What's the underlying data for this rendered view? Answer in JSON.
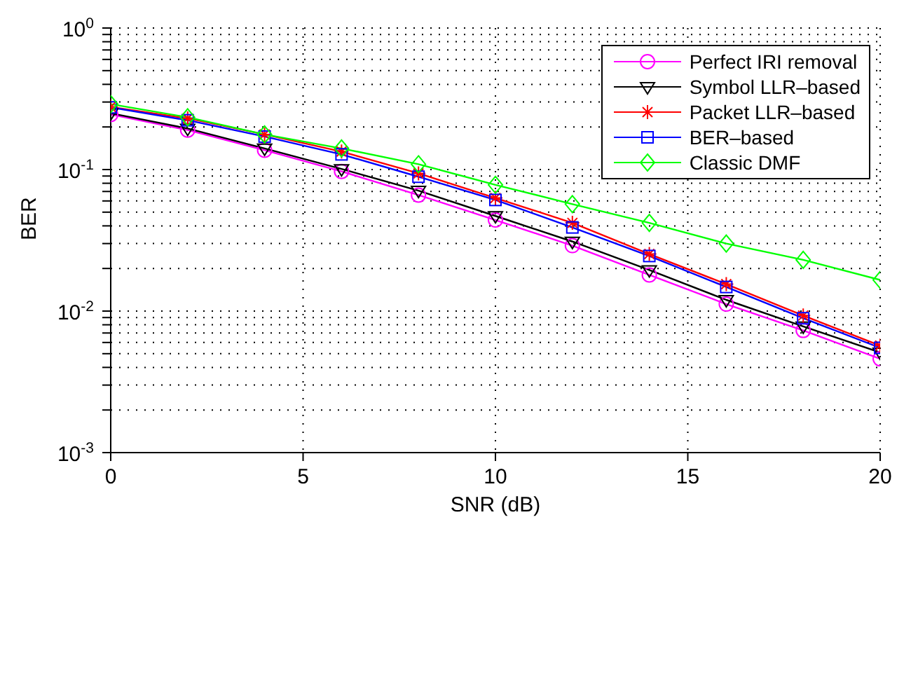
{
  "chart_data": {
    "type": "line",
    "xlabel": "SNR (dB)",
    "ylabel": "BER",
    "x": [
      0,
      2,
      4,
      6,
      8,
      10,
      12,
      14,
      16,
      18,
      20
    ],
    "series": [
      {
        "name": "Perfect IRI removal",
        "color": "#ff00ff",
        "marker": "circle",
        "values": [
          0.245,
          0.19,
          0.137,
          0.097,
          0.066,
          0.044,
          0.029,
          0.018,
          0.0112,
          0.0073,
          0.0046
        ]
      },
      {
        "name": "Symbol LLR–based",
        "color": "#000000",
        "marker": "triangle",
        "values": [
          0.25,
          0.195,
          0.141,
          0.101,
          0.071,
          0.047,
          0.031,
          0.0195,
          0.012,
          0.0078,
          0.0051
        ]
      },
      {
        "name": "Packet LLR–based",
        "color": "#ff0000",
        "marker": "cross",
        "values": [
          0.277,
          0.23,
          0.177,
          0.134,
          0.094,
          0.063,
          0.042,
          0.0253,
          0.0155,
          0.0093,
          0.0057
        ]
      },
      {
        "name": "BER–based",
        "color": "#0000ff",
        "marker": "square",
        "values": [
          0.275,
          0.223,
          0.171,
          0.128,
          0.089,
          0.061,
          0.039,
          0.0245,
          0.0148,
          0.0089,
          0.0055
        ]
      },
      {
        "name": "Classic DMF",
        "color": "#00ff00",
        "marker": "diamond",
        "values": [
          0.29,
          0.234,
          0.177,
          0.141,
          0.109,
          0.078,
          0.057,
          0.042,
          0.03,
          0.023,
          0.0166
        ]
      }
    ],
    "log": "y",
    "xlim": [
      0,
      20
    ],
    "xticks": [
      0,
      5,
      10,
      15,
      20
    ],
    "ylim": [
      0.001,
      1
    ],
    "yticks": [
      {
        "value": 0.001,
        "label": "10$^{-3}$"
      },
      {
        "value": 0.002,
        "label": null
      },
      {
        "value": 0.003,
        "label": null
      },
      {
        "value": 0.004,
        "label": null
      },
      {
        "value": 0.005,
        "label": null
      },
      {
        "value": 0.006,
        "label": null
      },
      {
        "value": 0.007,
        "label": null
      },
      {
        "value": 0.008,
        "label": null
      },
      {
        "value": 0.009,
        "label": null
      },
      {
        "value": 0.01,
        "label": "10$^{-2}$"
      },
      {
        "value": 0.02,
        "label": null
      },
      {
        "value": 0.03,
        "label": null
      },
      {
        "value": 0.04,
        "label": null
      },
      {
        "value": 0.05,
        "label": null
      },
      {
        "value": 0.06,
        "label": null
      },
      {
        "value": 0.07,
        "label": null
      },
      {
        "value": 0.08,
        "label": null
      },
      {
        "value": 0.09,
        "label": null
      },
      {
        "value": 0.1,
        "label": "10$^{-1}$"
      },
      {
        "value": 0.2,
        "label": null
      },
      {
        "value": 0.3,
        "label": null
      },
      {
        "value": 0.4,
        "label": null
      },
      {
        "value": 0.5,
        "label": null
      },
      {
        "value": 0.6,
        "label": null
      },
      {
        "value": 0.7,
        "label": null
      },
      {
        "value": 0.8,
        "label": null
      },
      {
        "value": 0.9,
        "label": null
      },
      {
        "value": 1,
        "label": "10$^{0}$"
      }
    ],
    "grid": true,
    "line_style": "solid",
    "legend": "top right"
  }
}
